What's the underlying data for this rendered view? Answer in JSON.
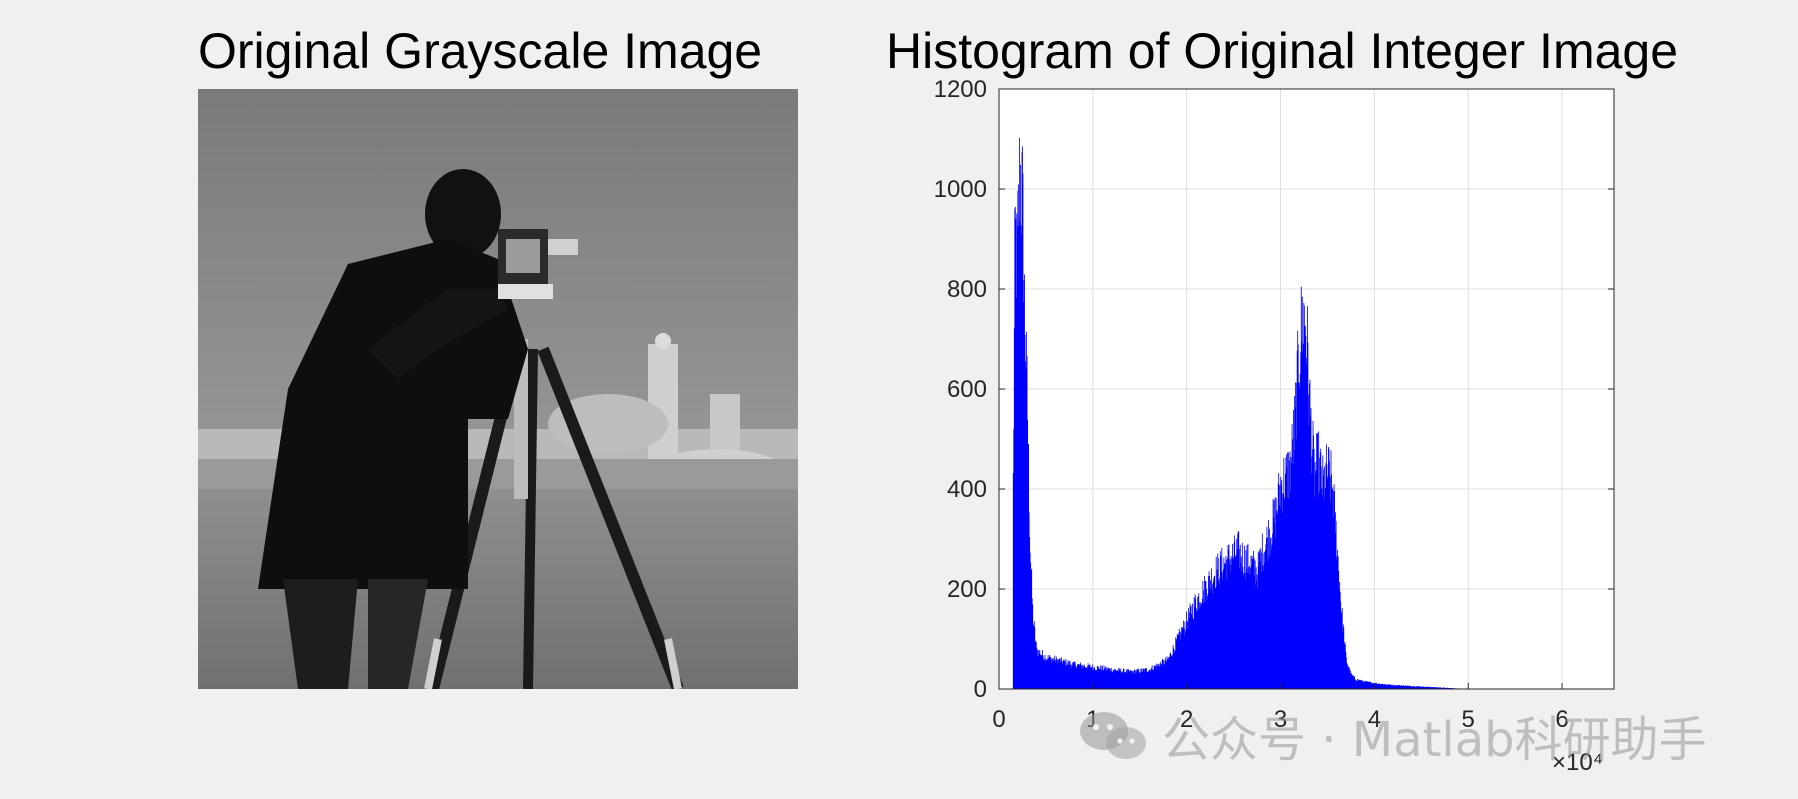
{
  "image_panel": {
    "title": "Original Grayscale Image",
    "image_description_name": "cameraman"
  },
  "chart_data": {
    "type": "bar",
    "title": "Histogram of Original Integer Image",
    "xlabel": "",
    "ylabel": "",
    "x_exponent_label": "×10⁴",
    "xlim": [
      0,
      65535
    ],
    "ylim": [
      0,
      1200
    ],
    "x_ticks": [
      0,
      10000,
      20000,
      30000,
      40000,
      50000,
      60000
    ],
    "x_tick_labels": [
      "0",
      "1",
      "2",
      "3",
      "4",
      "5",
      "6"
    ],
    "y_ticks": [
      0,
      200,
      400,
      600,
      800,
      1000,
      1200
    ],
    "y_tick_labels": [
      "0",
      "200",
      "400",
      "600",
      "800",
      "1000",
      "1200"
    ],
    "grid": true,
    "bar_color": "#0000ff",
    "envelope": {
      "x": [
        1500,
        1700,
        1900,
        2200,
        2500,
        2700,
        3000,
        3300,
        3600,
        4000,
        5000,
        6000,
        8000,
        10000,
        12000,
        14000,
        16000,
        18000,
        19000,
        20000,
        21000,
        22000,
        23000,
        24000,
        25000,
        25500,
        26000,
        27000,
        27500,
        28000,
        29000,
        29500,
        30000,
        31000,
        31500,
        32000,
        32300,
        32600,
        32800,
        33000,
        33300,
        33600,
        34000,
        34500,
        35000,
        35500,
        36000,
        36500,
        37000,
        37500,
        38000,
        39000,
        40000,
        42000,
        45000,
        48000,
        50000
      ],
      "y": [
        420,
        950,
        870,
        1070,
        1000,
        800,
        600,
        300,
        150,
        80,
        65,
        60,
        50,
        45,
        40,
        35,
        40,
        60,
        100,
        140,
        180,
        210,
        240,
        260,
        275,
        285,
        270,
        255,
        240,
        280,
        330,
        360,
        420,
        450,
        540,
        700,
        760,
        770,
        720,
        620,
        520,
        440,
        470,
        420,
        450,
        420,
        300,
        160,
        60,
        30,
        20,
        15,
        12,
        8,
        5,
        2,
        0
      ]
    }
  },
  "watermark": {
    "text": "公众号 · Matlab科研助手",
    "icon": "wechat-icon"
  }
}
